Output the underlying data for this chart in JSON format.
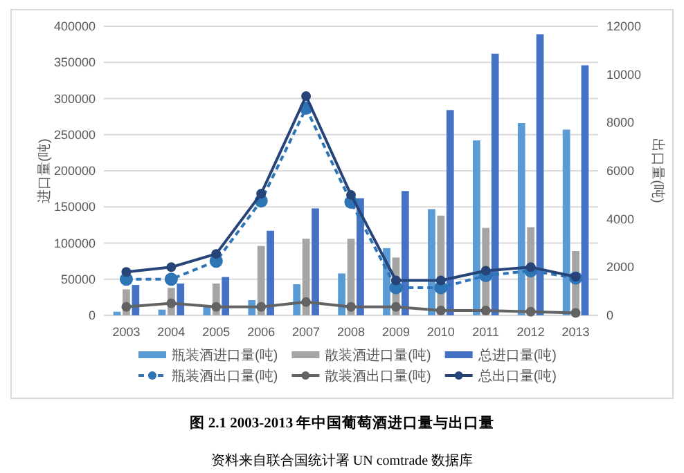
{
  "chart_data": {
    "type": "bar",
    "title": "图 2.1 2003-2013 年中国葡萄酒进口量与出口量",
    "ylabel": "进口量(吨)",
    "y2label": "出口量(吨)",
    "annotations": [
      "资料来自联合国统计署 UN comtrade 数据库"
    ],
    "categories": [
      "2003",
      "2004",
      "2005",
      "2006",
      "2007",
      "2008",
      "2009",
      "2010",
      "2011",
      "2012",
      "2013"
    ],
    "series": [
      {
        "name": "瓶装酒进口量(吨)",
        "color": "#5b9bd5",
        "values": [
          5000,
          8000,
          12000,
          21000,
          43000,
          58000,
          93000,
          147000,
          242000,
          266000,
          257000
        ]
      },
      {
        "name": "散装酒进口量(吨)",
        "color": "#a5a5a5",
        "values": [
          36000,
          38000,
          44000,
          96000,
          106000,
          106000,
          80000,
          138000,
          121000,
          122000,
          89000
        ]
      },
      {
        "name": "总进口量(吨)",
        "color": "#4472c4",
        "values": [
          42000,
          44000,
          53000,
          117000,
          148000,
          162000,
          172000,
          284000,
          362000,
          389000,
          346000
        ]
      },
      {
        "name": "瓶装酒出口量(吨)",
        "type": "line",
        "axis": "y2",
        "line_style": "dashed",
        "color": "#2e75b6",
        "values": [
          1500,
          1500,
          2250,
          4750,
          8600,
          4700,
          1150,
          1150,
          1650,
          1850,
          1550
        ]
      },
      {
        "name": "散装酒出口量(吨)",
        "type": "line",
        "axis": "y2",
        "line_style": "solid",
        "color": "#636363",
        "values": [
          350,
          500,
          350,
          350,
          550,
          350,
          350,
          200,
          200,
          150,
          100
        ]
      },
      {
        "name": "总出口量(吨)",
        "type": "line",
        "axis": "y2",
        "line_style": "solid",
        "color": "#264478",
        "values": [
          1800,
          2000,
          2550,
          5050,
          9100,
          5000,
          1450,
          1450,
          1850,
          2000,
          1600
        ]
      }
    ],
    "ylim": [
      0,
      400000
    ],
    "yticks": [
      0,
      50000,
      100000,
      150000,
      200000,
      250000,
      300000,
      350000,
      400000
    ],
    "y2lim": [
      0,
      12000
    ],
    "y2ticks": [
      0,
      2000,
      4000,
      6000,
      8000,
      10000,
      12000
    ],
    "grid": "y",
    "legend": "bottom",
    "marker": "circle"
  }
}
